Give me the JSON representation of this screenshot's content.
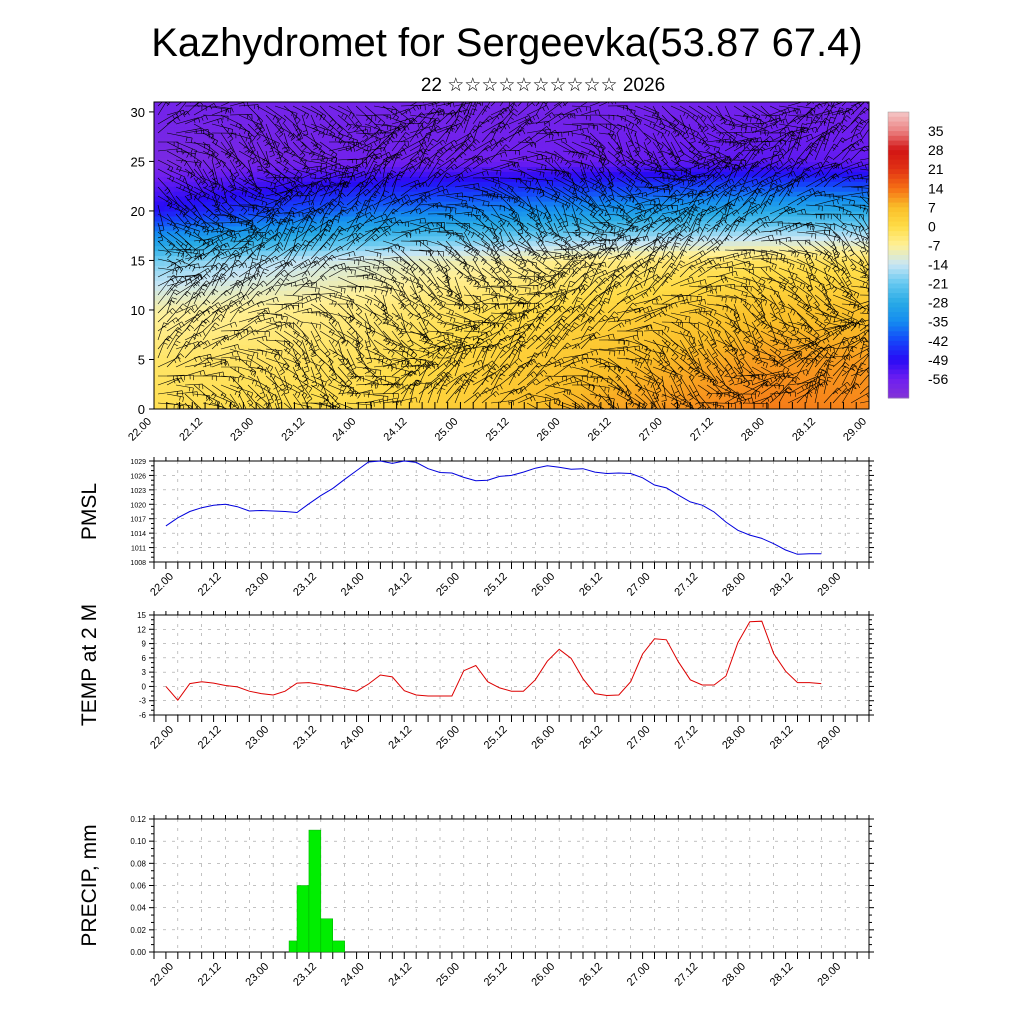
{
  "header": {
    "title": "Kazhydromet for Sergeevka(53.87 67.4)",
    "subtitle": "22 ☆☆☆☆☆☆☆☆☆☆ 2026"
  },
  "time_labels": [
    "22.00",
    "22.12",
    "23.00",
    "23.12",
    "24.00",
    "24.12",
    "25.00",
    "25.12",
    "26.00",
    "26.12",
    "27.00",
    "27.12",
    "28.00",
    "28.12",
    "29.00"
  ],
  "colors": {
    "pmsl_line": "#0000dd",
    "temp_line": "#dd0000",
    "precip_bar": "#00ee00",
    "precip_edge": "#00aa00",
    "barb": "#000000"
  },
  "chart_data": [
    {
      "id": "cross-section",
      "type": "heatmap",
      "title": "Kazhydromet for Sergeevka(53.87 67.4)",
      "subtitle": "22 ☆☆☆☆☆☆☆☆☆☆ 2026",
      "y_tick_labels": [
        "0",
        "5",
        "10",
        "15",
        "20",
        "25",
        "30"
      ],
      "ylim": [
        0,
        31
      ],
      "colorbar_labels": [
        "35",
        "28",
        "21",
        "14",
        "7",
        "0",
        "-7",
        "-14",
        "-21",
        "-28",
        "-35",
        "-42",
        "-49",
        "-56"
      ],
      "colorbar_range": [
        -63,
        42
      ],
      "temperature_field_points": [
        {
          "time": "22.00",
          "levels": [
            0,
            5,
            10,
            15,
            20,
            25,
            30
          ],
          "values": [
            -1,
            -3,
            -8,
            -20,
            -48,
            -60,
            -58
          ]
        },
        {
          "time": "24.00",
          "levels": [
            0,
            5,
            10,
            15,
            20,
            25,
            30
          ],
          "values": [
            0,
            -2,
            -5,
            -12,
            -38,
            -57,
            -58
          ]
        },
        {
          "time": "26.00",
          "levels": [
            0,
            5,
            10,
            15,
            20,
            25,
            30
          ],
          "values": [
            8,
            5,
            1,
            -6,
            -33,
            -56,
            -58
          ]
        },
        {
          "time": "28.00",
          "levels": [
            0,
            5,
            10,
            15,
            20,
            25,
            30
          ],
          "values": [
            13,
            10,
            6,
            -2,
            -28,
            -54,
            -57
          ]
        },
        {
          "time": "29.00",
          "levels": [
            0,
            5,
            10,
            15,
            20,
            25,
            30
          ],
          "values": [
            12,
            10,
            6,
            -2,
            -28,
            -55,
            -57
          ]
        }
      ],
      "wind_barbs": "dense wind barbs over the full section",
      "grid": false
    },
    {
      "id": "pmsl",
      "type": "line",
      "ylabel": "PMSL",
      "y_tick_labels": [
        "1008",
        "1011",
        "1014",
        "1017",
        "1020",
        "1023",
        "1026",
        "1029"
      ],
      "ylim": [
        1008,
        1029
      ],
      "x": [
        0,
        3,
        6,
        9,
        12,
        15,
        18,
        21,
        24,
        27,
        30,
        33,
        36,
        39,
        42,
        45,
        48,
        51,
        54,
        57,
        60,
        63,
        66,
        69,
        72,
        75,
        78,
        81,
        84,
        87,
        90,
        93,
        96,
        99,
        102,
        105,
        108,
        111,
        114,
        117,
        120,
        123,
        126,
        129,
        132,
        135,
        138,
        141,
        144,
        147,
        150,
        153,
        156,
        159,
        162,
        165
      ],
      "series": [
        {
          "values": [
            1015.5,
            1017.2,
            1018.5,
            1019.3,
            1019.8,
            1020.0,
            1019.5,
            1018.6,
            1018.7,
            1018.6,
            1018.5,
            1018.3,
            1020.1,
            1021.8,
            1023.3,
            1025.2,
            1027.0,
            1028.8,
            1029.0,
            1028.5,
            1029.0,
            1028.7,
            1027.4,
            1026.6,
            1026.5,
            1025.6,
            1024.9,
            1025.0,
            1025.8,
            1026.0,
            1026.7,
            1027.5,
            1028.0,
            1027.7,
            1027.3,
            1027.4,
            1026.7,
            1026.4,
            1026.5,
            1026.4,
            1025.5,
            1024.0,
            1023.4,
            1021.9,
            1020.5,
            1019.8,
            1018.4,
            1016.3,
            1014.6,
            1013.6,
            1012.9,
            1011.8,
            1010.5,
            1009.6,
            1009.7,
            1009.7
          ]
        }
      ],
      "grid": true
    },
    {
      "id": "temp2m",
      "type": "line",
      "ylabel": "TEMP at 2 M",
      "y_tick_labels": [
        "-6",
        "-3",
        "0",
        "3",
        "6",
        "9",
        "12",
        "15"
      ],
      "ylim": [
        -6,
        15
      ],
      "x": [
        0,
        3,
        6,
        9,
        12,
        15,
        18,
        21,
        24,
        27,
        30,
        33,
        36,
        39,
        42,
        45,
        48,
        51,
        54,
        57,
        60,
        63,
        66,
        69,
        72,
        75,
        78,
        81,
        84,
        87,
        90,
        93,
        96,
        99,
        102,
        105,
        108,
        111,
        114,
        117,
        120,
        123,
        126,
        129,
        132,
        135,
        138,
        141,
        144,
        147,
        150,
        153,
        156,
        159,
        162,
        165
      ],
      "series": [
        {
          "values": [
            0.0,
            -2.9,
            0.6,
            1.0,
            0.7,
            0.2,
            -0.1,
            -1.0,
            -1.5,
            -1.8,
            -1.0,
            0.7,
            0.8,
            0.4,
            0.0,
            -0.5,
            -1.0,
            0.5,
            2.4,
            2.0,
            -0.9,
            -1.8,
            -2.0,
            -2.0,
            -2.0,
            3.3,
            4.4,
            1.0,
            -0.3,
            -1.0,
            -1.0,
            1.4,
            5.3,
            7.8,
            5.9,
            1.6,
            -1.5,
            -1.9,
            -1.8,
            1.0,
            6.8,
            10.0,
            9.8,
            5.2,
            1.4,
            0.3,
            0.3,
            2.2,
            9.2,
            13.6,
            13.7,
            6.9,
            3.2,
            0.8,
            0.8,
            0.6
          ]
        }
      ],
      "grid": true
    },
    {
      "id": "precip",
      "type": "bar",
      "ylabel": "PRECIP, mm",
      "y_tick_labels": [
        "0.00",
        "0.02",
        "0.04",
        "0.06",
        "0.08",
        "0.10",
        "0.12"
      ],
      "ylim": [
        0,
        0.12
      ],
      "bars": [
        {
          "start": 31,
          "end": 33,
          "value": 0.01
        },
        {
          "start": 33,
          "end": 36,
          "value": 0.06
        },
        {
          "start": 36,
          "end": 39,
          "value": 0.11
        },
        {
          "start": 39,
          "end": 42,
          "value": 0.03
        },
        {
          "start": 42,
          "end": 45,
          "value": 0.01
        }
      ],
      "grid": true
    }
  ]
}
